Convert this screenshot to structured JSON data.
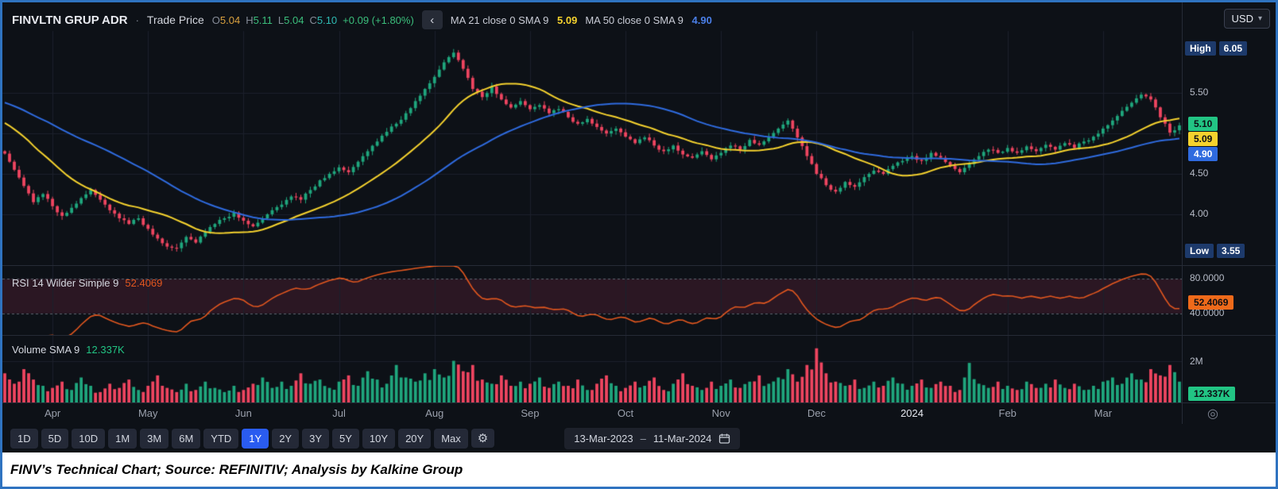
{
  "window": {
    "currency": "USD",
    "currency_caret": "▾"
  },
  "header": {
    "symbol": "FINVLTN GRUP ADR",
    "dot_sep": "·",
    "series_type": "Trade Price",
    "o_label": "O",
    "o_value": "5.04",
    "h_label": "H",
    "h_value": "5.11",
    "l_label": "L",
    "l_value": "5.04",
    "c_label": "C",
    "c_value": "5.10",
    "change": "+0.09 (+1.80%)",
    "collapse_glyph": "‹",
    "ma21_label": "MA 21 close 0 SMA 9",
    "ma21_value": "5.09",
    "ma50_label": "MA 50 close 0 SMA 9",
    "ma50_value": "4.90"
  },
  "price_axis": {
    "high_label": "High",
    "high_value": "6.05",
    "low_label": "Low",
    "low_value": "3.55",
    "last_value": "5.10",
    "ma21_value": "5.09",
    "ma50_value": "4.90",
    "gridline_labels": [
      {
        "text": "5.50",
        "price": 5.5
      },
      {
        "text": "4.50",
        "price": 4.5
      },
      {
        "text": "4.00",
        "price": 4.0
      }
    ]
  },
  "rsi_panel": {
    "title": "RSI 14 Wilder Simple 9",
    "value": "52.4069",
    "upper_label": "80.0000",
    "lower_label": "40.0000"
  },
  "volume_panel": {
    "title": "Volume SMA 9",
    "value": "12.337K",
    "scale_label": "2M"
  },
  "time_axis": {
    "labels": [
      "Apr",
      "May",
      "Jun",
      "Jul",
      "Aug",
      "Sep",
      "Oct",
      "Nov",
      "Dec",
      "2024",
      "Feb",
      "Mar"
    ],
    "highlight": "2024"
  },
  "toolbar": {
    "ranges": [
      "1D",
      "5D",
      "10D",
      "1M",
      "3M",
      "6M",
      "YTD",
      "1Y",
      "2Y",
      "3Y",
      "5Y",
      "10Y",
      "20Y",
      "Max"
    ],
    "active": "1Y",
    "settings_glyph": "⚙",
    "date_from": "13-Mar-2023",
    "date_sep": "–",
    "date_to": "11-Mar-2024"
  },
  "footer": {
    "caption": "FINV’s Technical Chart; Source: REFINITIV; Analysis by Kalkine Group"
  },
  "colors": {
    "background": "#0d1117",
    "grid": "#1c212c",
    "separator": "#262b36",
    "frame_border": "#2f73c0",
    "up": "#1fa67d",
    "down": "#ef4560",
    "ma21": "#f5d22e",
    "ma50": "#2f6bdf",
    "rsi_line": "#e2571f",
    "rsi_band_fill": "rgba(150,45,80,0.22)",
    "band_dash": "#5c6470",
    "badge_navy": "#1d3a6b",
    "badge_last": "#22c584",
    "badge_ma21": "#f5d22e",
    "badge_ma50": "#2f6bdf",
    "badge_rsi": "#ef6a1a",
    "badge_vol": "#22c584",
    "active_range": "#2a5cf0"
  },
  "chart_data": {
    "type": "candlestick",
    "title": "FINVLTN GRUP ADR · Trade Price · 1Y",
    "date_range": [
      "13-Mar-2023",
      "11-Mar-2024"
    ],
    "ylim": [
      3.4,
      6.15
    ],
    "price_gridlines": [
      5.5,
      5.0,
      4.5,
      4.0
    ],
    "period_high": 6.05,
    "period_low": 3.55,
    "last": {
      "open": 5.04,
      "high": 5.11,
      "low": 5.04,
      "close": 5.1,
      "change_pct": 1.8
    },
    "months": [
      "Apr",
      "May",
      "Jun",
      "Jul",
      "Aug",
      "Sep",
      "Oct",
      "Nov",
      "Dec",
      "2024",
      "Feb",
      "Mar"
    ],
    "month_start_index": [
      5,
      15,
      25,
      35,
      45,
      55,
      65,
      75,
      85,
      95,
      105,
      115
    ],
    "pre_closes": [
      5.72,
      5.68,
      5.74,
      5.62,
      5.58,
      5.65,
      5.55,
      5.6,
      5.5,
      5.55,
      5.45,
      5.52,
      5.42,
      5.48,
      5.38,
      5.44,
      5.35,
      5.4,
      5.3,
      5.2,
      5.1,
      5.0,
      4.92,
      4.85,
      4.78
    ],
    "closes": [
      4.75,
      4.55,
      4.35,
      4.15,
      4.25,
      4.1,
      3.98,
      4.08,
      4.2,
      4.3,
      4.18,
      4.05,
      3.95,
      3.88,
      3.95,
      3.82,
      3.7,
      3.6,
      3.58,
      3.72,
      3.65,
      3.78,
      3.88,
      3.95,
      4.02,
      3.92,
      3.85,
      3.95,
      4.05,
      4.12,
      4.22,
      4.18,
      4.3,
      4.42,
      4.5,
      4.58,
      4.52,
      4.65,
      4.78,
      4.9,
      5.02,
      5.12,
      5.25,
      5.4,
      5.55,
      5.7,
      5.88,
      6.0,
      5.8,
      5.55,
      5.45,
      5.58,
      5.42,
      5.32,
      5.4,
      5.3,
      5.35,
      5.25,
      5.3,
      5.2,
      5.12,
      5.18,
      5.08,
      5.0,
      5.06,
      4.96,
      4.88,
      4.95,
      4.85,
      4.78,
      4.85,
      4.74,
      4.7,
      4.78,
      4.68,
      4.76,
      4.85,
      4.8,
      4.92,
      4.86,
      4.96,
      5.06,
      5.16,
      4.95,
      4.72,
      4.5,
      4.36,
      4.28,
      4.4,
      4.34,
      4.46,
      4.54,
      4.5,
      4.6,
      4.66,
      4.72,
      4.66,
      4.76,
      4.7,
      4.6,
      4.52,
      4.62,
      4.72,
      4.8,
      4.76,
      4.82,
      4.76,
      4.84,
      4.78,
      4.86,
      4.8,
      4.88,
      4.82,
      4.9,
      4.96,
      5.06,
      5.16,
      5.28,
      5.38,
      5.48,
      5.42,
      5.2,
      5.01,
      5.1
    ],
    "volumes_millions": [
      1.4,
      0.9,
      1.6,
      1.1,
      0.8,
      0.7,
      1.0,
      0.6,
      1.2,
      0.8,
      0.5,
      0.9,
      0.7,
      1.1,
      0.6,
      0.8,
      1.3,
      0.7,
      0.5,
      0.9,
      0.6,
      1.0,
      0.7,
      0.5,
      0.8,
      0.6,
      0.9,
      1.2,
      0.7,
      1.0,
      0.8,
      1.4,
      0.9,
      1.1,
      0.7,
      1.0,
      1.3,
      0.8,
      1.5,
      1.1,
      0.9,
      1.8,
      1.2,
      1.0,
      1.4,
      1.6,
      1.2,
      2.0,
      1.5,
      1.8,
      1.1,
      0.9,
      1.3,
      0.8,
      1.0,
      0.9,
      1.2,
      0.7,
      1.0,
      0.8,
      1.1,
      0.6,
      0.9,
      1.3,
      0.8,
      0.7,
      1.0,
      0.8,
      1.2,
      0.6,
      0.9,
      1.4,
      0.8,
      0.6,
      1.0,
      0.8,
      1.1,
      0.7,
      1.0,
      1.3,
      0.9,
      1.2,
      1.6,
      1.0,
      1.8,
      2.6,
      1.4,
      1.0,
      0.8,
      1.1,
      0.7,
      1.0,
      0.8,
      1.2,
      0.9,
      0.8,
      1.1,
      0.7,
      1.0,
      0.8,
      0.6,
      1.9,
      0.9,
      0.7,
      1.0,
      0.8,
      0.6,
      1.0,
      0.7,
      0.9,
      1.1,
      0.7,
      0.9,
      0.6,
      0.8,
      1.0,
      1.2,
      0.9,
      1.4,
      1.1,
      1.6,
      1.3,
      1.8,
      1.0
    ],
    "volume_ymax_millions": 3.2,
    "volume_gridline_millions": 2,
    "overlays": [
      {
        "name": "MA 21 close 0 SMA 9",
        "period": 21,
        "color_key": "ma21",
        "last_value": 5.09
      },
      {
        "name": "MA 50 close 0 SMA 9",
        "period": 50,
        "color_key": "ma50",
        "last_value": 4.9
      }
    ],
    "rsi": {
      "name": "RSI 14 Wilder Simple 9",
      "period": 14,
      "last_value": 52.4069,
      "upper_band": 80,
      "lower_band": 40,
      "range": [
        15,
        95
      ]
    }
  }
}
